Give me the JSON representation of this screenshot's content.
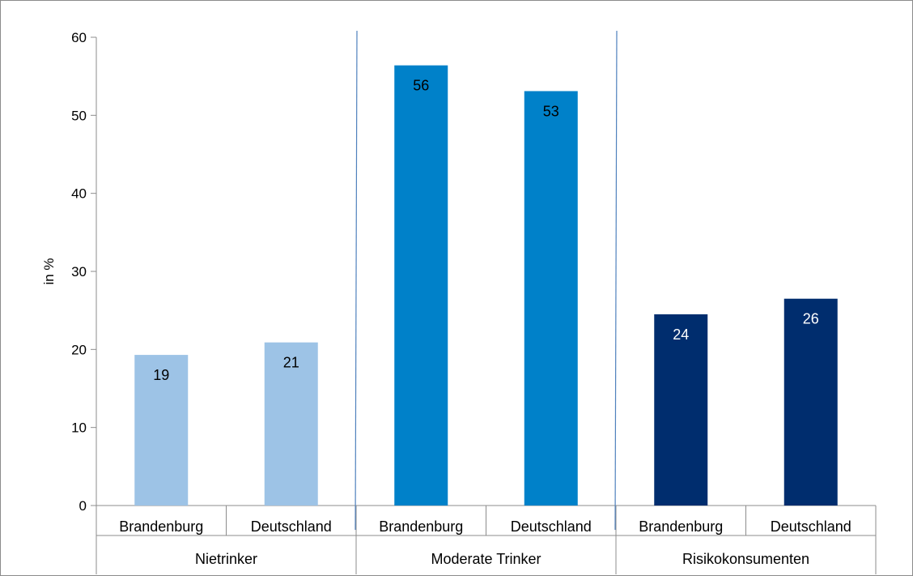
{
  "chart_data": {
    "type": "bar",
    "ylabel": "in %",
    "ylim": [
      0,
      60
    ],
    "yticks": [
      0,
      10,
      20,
      30,
      40,
      50,
      60
    ],
    "grid": false,
    "legend": "none",
    "groups": [
      {
        "label": "Nietrinker",
        "color": "#9dc3e6",
        "label_color": "#000000",
        "bars": [
          {
            "category": "Brandenburg",
            "value": 19.3,
            "label": "19"
          },
          {
            "category": "Deutschland",
            "value": 20.9,
            "label": "21"
          }
        ]
      },
      {
        "label": "Moderate Trinker",
        "color": "#0081c9",
        "label_color": "#000000",
        "bars": [
          {
            "category": "Brandenburg",
            "value": 56.4,
            "label": "56"
          },
          {
            "category": "Deutschland",
            "value": 53.1,
            "label": "53"
          }
        ]
      },
      {
        "label": "Risikokonsumenten",
        "color": "#002d6e",
        "label_color": "#ffffff",
        "bars": [
          {
            "category": "Brandenburg",
            "value": 24.5,
            "label": "24"
          },
          {
            "category": "Deutschland",
            "value": 26.5,
            "label": "26"
          }
        ]
      }
    ]
  }
}
